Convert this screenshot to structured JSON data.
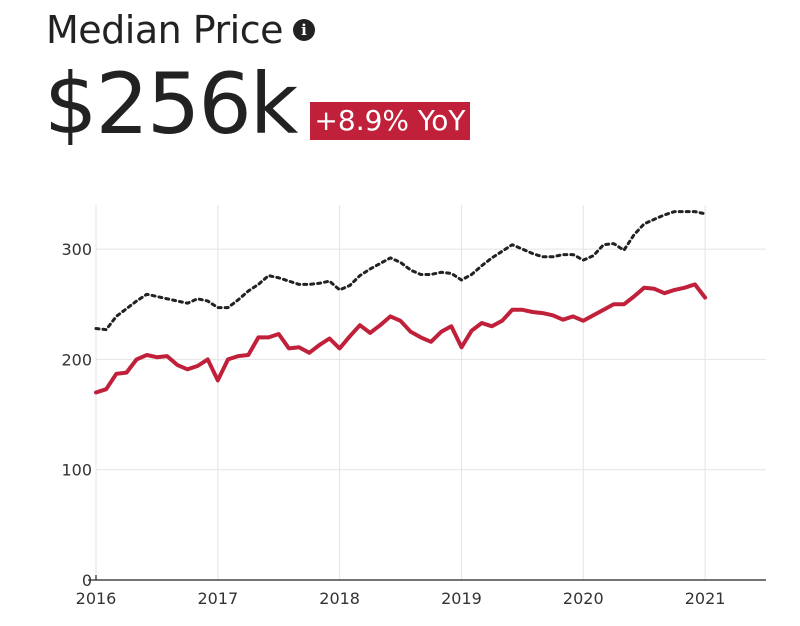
{
  "header": {
    "title": "Median Price",
    "info_icon": "info-icon",
    "value": "$256k",
    "change_badge": "+8.9% YoY",
    "badge_color": "#c0203a"
  },
  "chart_data": {
    "type": "line",
    "x_start": 2016,
    "x_step": 0.0833333,
    "xlim": [
      2016,
      2021.5
    ],
    "ylim": [
      0,
      340
    ],
    "x_ticks": [
      2016,
      2017,
      2018,
      2019,
      2020,
      2021
    ],
    "x_tick_labels": [
      "2016",
      "2017",
      "2018",
      "2019",
      "2020",
      "2021"
    ],
    "y_ticks": [
      0,
      100,
      200,
      300
    ],
    "y_tick_labels": [
      "0",
      "100",
      "200",
      "300"
    ],
    "grid": true,
    "series": [
      {
        "style": "solid",
        "color": "#c0203a",
        "values": [
          170,
          173,
          187,
          188,
          200,
          204,
          202,
          203,
          195,
          191,
          194,
          200,
          181,
          200,
          203,
          204,
          220,
          220,
          223,
          210,
          211,
          206,
          213,
          219,
          210,
          221,
          231,
          224,
          231,
          239,
          235,
          225,
          220,
          216,
          225,
          230,
          211,
          226,
          233,
          230,
          235,
          245,
          245,
          243,
          242,
          240,
          236,
          239,
          235,
          240,
          245,
          250,
          250,
          257,
          265,
          264,
          260,
          263,
          265,
          268,
          256
        ]
      },
      {
        "style": "dotted",
        "color": "#222222",
        "values": [
          228,
          227,
          239,
          246,
          253,
          259,
          257,
          255,
          253,
          251,
          255,
          253,
          247,
          247,
          254,
          262,
          268,
          276,
          274,
          271,
          268,
          268,
          269,
          271,
          263,
          267,
          276,
          282,
          287,
          292,
          288,
          281,
          277,
          277,
          279,
          278,
          272,
          277,
          285,
          292,
          298,
          304,
          300,
          296,
          293,
          293,
          295,
          295,
          290,
          294,
          304,
          305,
          299,
          313,
          323,
          327,
          331,
          334,
          334,
          334,
          332
        ]
      }
    ]
  }
}
